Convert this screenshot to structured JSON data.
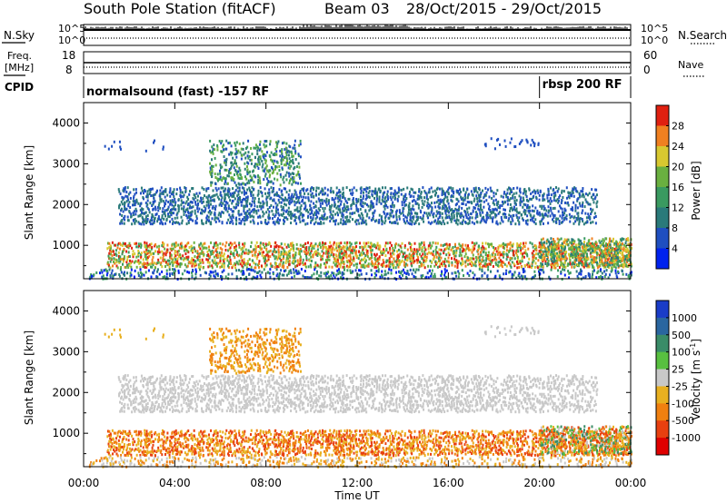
{
  "header": {
    "station": "South Pole Station (fitACF)",
    "beam": "Beam 03",
    "dates": "28/Oct/2015 - 29/Oct/2015"
  },
  "nsky_panel": {
    "left_label": "N.Sky",
    "right_label": "N.Search",
    "left_ticks": [
      "10^5",
      "10^0"
    ],
    "right_ticks": [
      "10^5",
      "10^0"
    ]
  },
  "freq_panel": {
    "left_label_1": "Freq.",
    "left_label_2": "[MHz]",
    "right_label": "Nave",
    "left_ticks": [
      "18",
      "8"
    ],
    "right_ticks": [
      "60",
      "0"
    ]
  },
  "cpid": {
    "label": "CPID",
    "segments": [
      {
        "text": "normalsound (fast) -157 RF",
        "start_hour": 0
      },
      {
        "text": "rbsp 200 RF",
        "start_hour": 20
      }
    ]
  },
  "chart_data": [
    {
      "type": "heatmap",
      "title": "Power",
      "ylabel": "Slant Range [km]",
      "xlabel": "",
      "x_range_hours": [
        0,
        24
      ],
      "x_ticks": [
        "00:00",
        "04:00",
        "08:00",
        "12:00",
        "16:00",
        "20:00",
        "00:00"
      ],
      "ylim": [
        180,
        4500
      ],
      "y_ticks": [
        1000,
        2000,
        3000,
        4000
      ],
      "colorbar": {
        "label": "Power [dB]",
        "range": [
          0,
          30
        ],
        "ticks": [
          "4",
          "8",
          "12",
          "16",
          "20",
          "24",
          "28"
        ],
        "colors": [
          "#0022ee",
          "#1f4fc0",
          "#2a7a7a",
          "#3a9a60",
          "#6ab040",
          "#d8c830",
          "#f08020",
          "#e02010"
        ]
      }
    },
    {
      "type": "heatmap",
      "title": "Velocity",
      "ylabel": "Slant Range [km]",
      "xlabel": "Time UT",
      "x_range_hours": [
        0,
        24
      ],
      "x_ticks": [
        "00:00",
        "04:00",
        "08:00",
        "12:00",
        "16:00",
        "20:00",
        "00:00"
      ],
      "ylim": [
        180,
        4500
      ],
      "y_ticks": [
        1000,
        2000,
        3000,
        4000
      ],
      "colorbar": {
        "label": "Velocity [m s^-1]",
        "ticks": [
          "1000",
          "500",
          "100",
          "25",
          "-25",
          "-100",
          "-500",
          "-1000"
        ],
        "colors": [
          "#1a3cc8",
          "#2a66a0",
          "#3a8c68",
          "#58c040",
          "#c8c8c8",
          "#e8b020",
          "#f08010",
          "#e84010",
          "#e00000"
        ]
      }
    }
  ]
}
